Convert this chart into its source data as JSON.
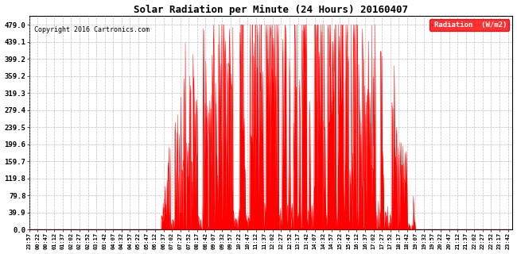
{
  "title": "Solar Radiation per Minute (24 Hours) 20160407",
  "copyright": "Copyright 2016 Cartronics.com",
  "legend_label": "Radiation  (W/m2)",
  "yticks": [
    0.0,
    39.9,
    79.8,
    119.8,
    159.7,
    199.6,
    239.5,
    279.4,
    319.3,
    359.2,
    399.2,
    439.1,
    479.0
  ],
  "ymax": 500,
  "fill_color": "#ff0000",
  "line_color": "#ff0000",
  "background_color": "#ffffff",
  "grid_color": "#b0b0b0",
  "legend_bg": "#ff0000",
  "legend_text_color": "#ffffff",
  "title_color": "#000000",
  "copyright_color": "#000000"
}
